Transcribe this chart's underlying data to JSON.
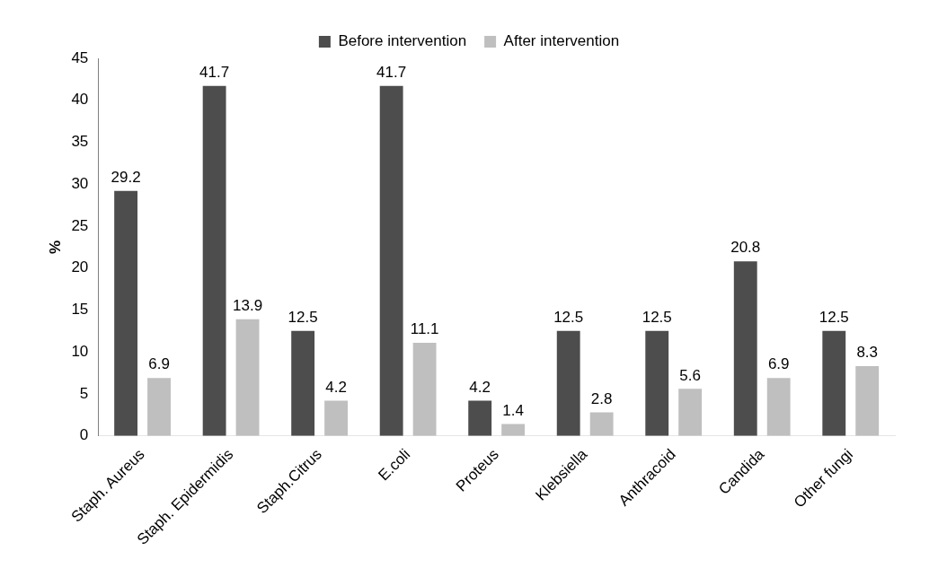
{
  "chart_data": {
    "type": "bar",
    "ylabel": "%",
    "categories": [
      "Staph. Aureus",
      "Staph. Epidermidis",
      "Staph.Citrus",
      "E.coli",
      "Proteus",
      "Klebsiella",
      "Anthracoid",
      "Candida",
      "Other fungi"
    ],
    "series": [
      {
        "name": "Before intervention",
        "color": "#4d4d4d",
        "values": [
          29.2,
          41.7,
          12.5,
          41.7,
          4.2,
          12.5,
          12.5,
          20.8,
          12.5
        ]
      },
      {
        "name": "After intervention",
        "color": "#bfbfbf",
        "values": [
          6.9,
          13.9,
          4.2,
          11.1,
          1.4,
          2.8,
          5.6,
          6.9,
          8.3
        ]
      }
    ],
    "ylim": [
      0,
      45
    ],
    "yticks": [
      0,
      5,
      10,
      15,
      20,
      25,
      30,
      35,
      40,
      45
    ],
    "grid": false,
    "legend": "top",
    "data_labels": true
  }
}
